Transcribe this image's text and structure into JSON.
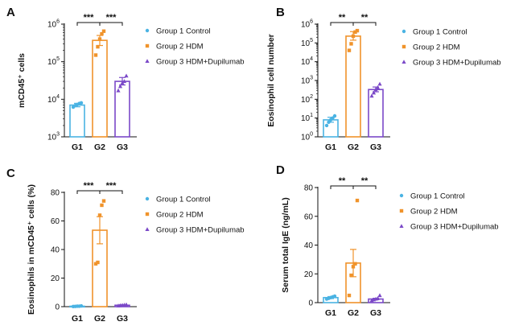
{
  "colors": {
    "g1": "#4ab3e3",
    "g2": "#f0932b",
    "g3": "#7b49c8"
  },
  "chart_data": [
    {
      "panel_letter": "A",
      "type": "bar",
      "ylabel": "mCD45⁺ cells",
      "yscale": "log",
      "ylim": [
        1000,
        1000000
      ],
      "yticks": [
        {
          "value": 1000,
          "base": "10",
          "exp": "3"
        },
        {
          "value": 10000,
          "base": "10",
          "exp": "4"
        },
        {
          "value": 100000,
          "base": "10",
          "exp": "5"
        },
        {
          "value": 1000000,
          "base": "10",
          "exp": "6"
        }
      ],
      "categories": [
        "G1",
        "G2",
        "G3"
      ],
      "values": [
        7000,
        370000,
        30000
      ],
      "errors": [
        [
          6300,
          7800
        ],
        [
          270000,
          500000
        ],
        [
          24000,
          38000
        ]
      ],
      "points": [
        [
          6200,
          6800,
          7200,
          7700,
          8000
        ],
        [
          150000,
          250000,
          400000,
          550000,
          650000
        ],
        [
          17000,
          22000,
          27000,
          30000,
          42000
        ]
      ],
      "significance": [
        {
          "pair": [
            0,
            1
          ],
          "label": "***"
        },
        {
          "pair": [
            1,
            2
          ],
          "label": "***"
        }
      ],
      "legend": [
        "Group 1 Control",
        "Group 2 HDM",
        "Group 3 HDM+Dupilumab"
      ],
      "legend_position": "right"
    },
    {
      "panel_letter": "B",
      "type": "bar",
      "ylabel": "Eosinophil cell number",
      "yscale": "log",
      "ylim": [
        1,
        1000000
      ],
      "yticks": [
        {
          "value": 1,
          "base": "10",
          "exp": "0"
        },
        {
          "value": 10,
          "base": "10",
          "exp": "1"
        },
        {
          "value": 100,
          "base": "10",
          "exp": "2"
        },
        {
          "value": 1000,
          "base": "10",
          "exp": "3"
        },
        {
          "value": 10000,
          "base": "10",
          "exp": "4"
        },
        {
          "value": 100000,
          "base": "10",
          "exp": "5"
        },
        {
          "value": 1000000,
          "base": "10",
          "exp": "6"
        }
      ],
      "categories": [
        "G1",
        "G2",
        "G3"
      ],
      "values": [
        8,
        230000,
        330
      ],
      "errors": [
        [
          6,
          11
        ],
        [
          140000,
          400000
        ],
        [
          250,
          450
        ]
      ],
      "points": [
        [
          4,
          6,
          8,
          10,
          13
        ],
        [
          40000,
          90000,
          230000,
          380000,
          450000
        ],
        [
          150,
          220,
          330,
          420,
          650
        ]
      ],
      "significance": [
        {
          "pair": [
            0,
            1
          ],
          "label": "**"
        },
        {
          "pair": [
            1,
            2
          ],
          "label": "**"
        }
      ],
      "legend": [
        "Group 1 Control",
        "Group 2 HDM",
        "Group 3 HDM+Dupilumab"
      ],
      "legend_position": "right"
    },
    {
      "panel_letter": "C",
      "type": "bar",
      "ylabel": "Eosinophils in mCD45⁺ cells (%)",
      "yscale": "linear",
      "ylim": [
        0,
        80
      ],
      "yticks": [
        {
          "value": 0,
          "label": "0"
        },
        {
          "value": 20,
          "label": "20"
        },
        {
          "value": 40,
          "label": "40"
        },
        {
          "value": 60,
          "label": "60"
        },
        {
          "value": 80,
          "label": "80"
        }
      ],
      "categories": [
        "G1",
        "G2",
        "G3"
      ],
      "values": [
        0.3,
        53.5,
        1.0
      ],
      "errors": [
        [
          0.1,
          0.5
        ],
        [
          44,
          63
        ],
        [
          0.7,
          1.3
        ]
      ],
      "points": [
        [
          0.1,
          0.2,
          0.3,
          0.3,
          0.5
        ],
        [
          30,
          31,
          64,
          71,
          74
        ],
        [
          0.6,
          0.8,
          1.0,
          1.2,
          1.4
        ]
      ],
      "significance": [
        {
          "pair": [
            0,
            1
          ],
          "label": "***"
        },
        {
          "pair": [
            1,
            2
          ],
          "label": "***"
        }
      ],
      "legend": [
        "Group 1 Control",
        "Group 2 HDM",
        "Group 3 HDM+Dupilumab"
      ],
      "legend_position": "right"
    },
    {
      "panel_letter": "D",
      "type": "bar",
      "ylabel": "Serum total IgE (ng/mL)",
      "yscale": "linear",
      "ylim": [
        0,
        80
      ],
      "yticks": [
        {
          "value": 0,
          "label": "0"
        },
        {
          "value": 20,
          "label": "20"
        },
        {
          "value": 40,
          "label": "40"
        },
        {
          "value": 60,
          "label": "60"
        },
        {
          "value": 80,
          "label": "80"
        }
      ],
      "categories": [
        "G1",
        "G2",
        "G3"
      ],
      "values": [
        3.5,
        27.5,
        2.5
      ],
      "errors": [
        [
          2.8,
          4.2
        ],
        [
          18,
          37
        ],
        [
          2.0,
          3.0
        ]
      ],
      "points": [
        [
          2.5,
          3.0,
          3.5,
          4.0,
          4.5
        ],
        [
          5,
          19,
          25,
          27,
          71
        ],
        [
          1.5,
          2.0,
          2.5,
          3.0,
          5.0
        ]
      ],
      "significance": [
        {
          "pair": [
            0,
            1
          ],
          "label": "**"
        },
        {
          "pair": [
            1,
            2
          ],
          "label": "**"
        }
      ],
      "legend": [
        "Group 1 Control",
        "Group 2 HDM",
        "Group 3 HDM+Dupilumab"
      ],
      "legend_position": "right"
    }
  ]
}
